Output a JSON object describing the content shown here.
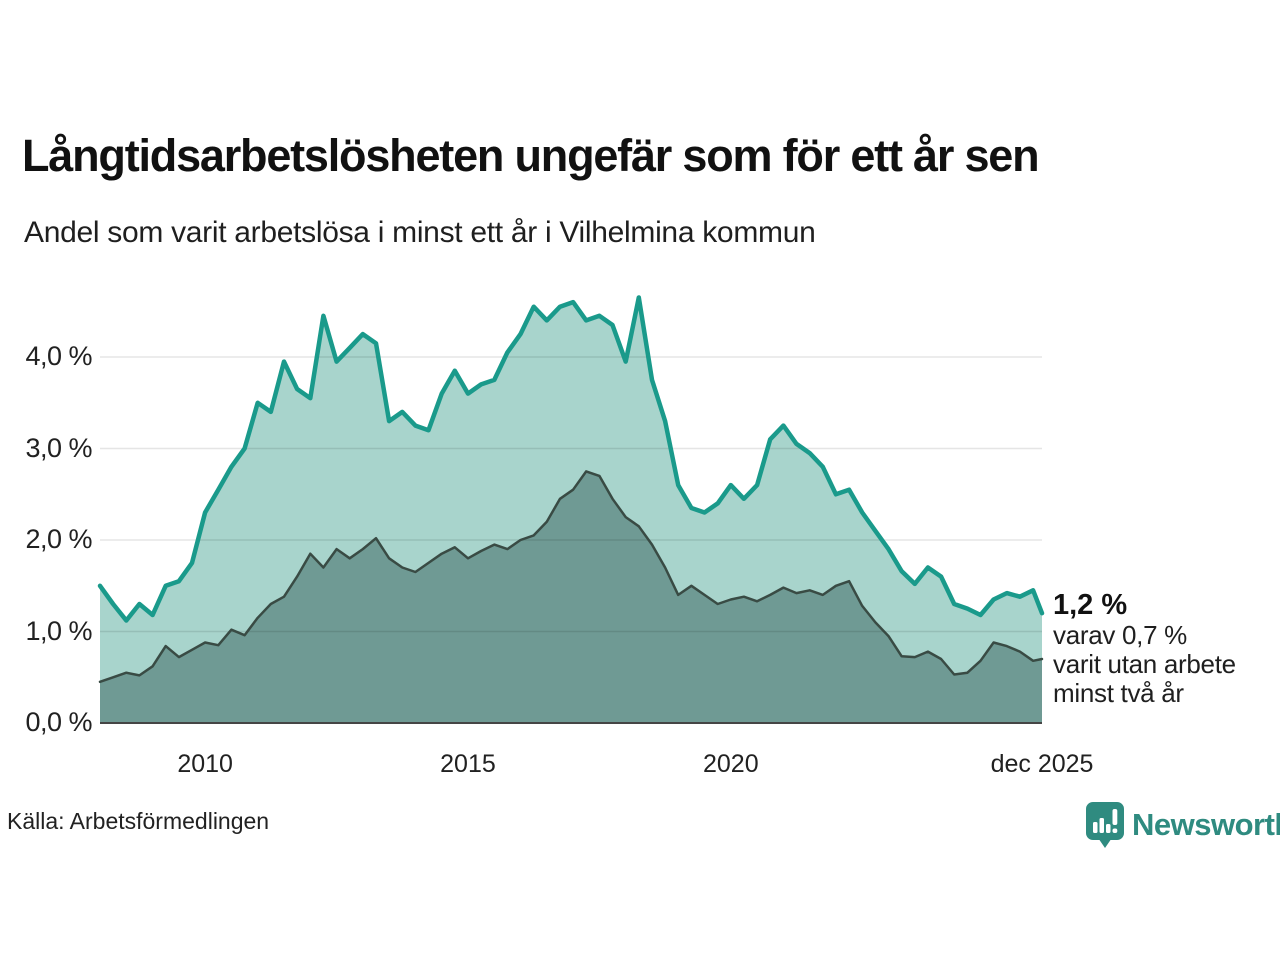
{
  "header": {
    "title": "Långtidsarbetslösheten ungefär som för ett år sen",
    "subtitle": "Andel som varit arbetslösa i minst ett år i Vilhelmina kommun"
  },
  "chart_data": {
    "type": "area",
    "title": "Långtidsarbetslösheten ungefär som för ett år sen",
    "subtitle": "Andel som varit arbetslösa i minst ett år i Vilhelmina kommun",
    "unit": "%",
    "grid": "horizontal",
    "xlim": [
      2008,
      2025.92
    ],
    "ylim": [
      0,
      4.8
    ],
    "x": [
      2008,
      2008.25,
      2008.5,
      2008.75,
      2009,
      2009.25,
      2009.5,
      2009.75,
      2010,
      2010.25,
      2010.5,
      2010.75,
      2011,
      2011.25,
      2011.5,
      2011.75,
      2012,
      2012.25,
      2012.5,
      2012.75,
      2013,
      2013.25,
      2013.5,
      2013.75,
      2014,
      2014.25,
      2014.5,
      2014.75,
      2015,
      2015.25,
      2015.5,
      2015.75,
      2016,
      2016.25,
      2016.5,
      2016.75,
      2017,
      2017.25,
      2017.5,
      2017.75,
      2018,
      2018.25,
      2018.5,
      2018.75,
      2019,
      2019.25,
      2019.5,
      2019.75,
      2020,
      2020.25,
      2020.5,
      2020.75,
      2021,
      2021.25,
      2021.5,
      2021.75,
      2022,
      2022.25,
      2022.5,
      2022.75,
      2023,
      2023.25,
      2023.5,
      2023.75,
      2024,
      2024.25,
      2024.5,
      2024.75,
      2025,
      2025.25,
      2025.5,
      2025.75,
      2025.92
    ],
    "series": [
      {
        "key": "minst-ett-ar",
        "name": "Andel arbetslösa minst ett år",
        "line_color": "#1a9a8b",
        "fill_color": "#a8d4cc",
        "line_width": 4.5,
        "last_value_label": "1,2 %",
        "values": [
          1.5,
          1.3,
          1.12,
          1.3,
          1.18,
          1.5,
          1.55,
          1.75,
          2.3,
          2.55,
          2.8,
          3.0,
          3.5,
          3.4,
          3.95,
          3.65,
          3.55,
          4.45,
          3.95,
          4.1,
          4.25,
          4.15,
          3.3,
          3.4,
          3.25,
          3.2,
          3.6,
          3.85,
          3.6,
          3.7,
          3.75,
          4.05,
          4.25,
          4.55,
          4.4,
          4.55,
          4.6,
          4.4,
          4.45,
          4.35,
          3.95,
          4.65,
          3.75,
          3.3,
          2.6,
          2.35,
          2.3,
          2.4,
          2.6,
          2.45,
          2.6,
          3.1,
          3.25,
          3.05,
          2.95,
          2.8,
          2.5,
          2.55,
          2.3,
          2.1,
          1.9,
          1.66,
          1.52,
          1.7,
          1.6,
          1.3,
          1.25,
          1.18,
          1.35,
          1.42,
          1.38,
          1.45,
          1.2
        ]
      },
      {
        "key": "minst-tva-ar",
        "name": "Andel utan arbete minst två år",
        "line_color": "#394b44",
        "fill_color": "#6f9a94",
        "line_width": 2.5,
        "last_value_label": "0,7 %",
        "values": [
          0.45,
          0.5,
          0.55,
          0.52,
          0.62,
          0.84,
          0.72,
          0.8,
          0.88,
          0.85,
          1.02,
          0.96,
          1.15,
          1.3,
          1.38,
          1.6,
          1.85,
          1.7,
          1.9,
          1.8,
          1.9,
          2.02,
          1.8,
          1.7,
          1.65,
          1.75,
          1.85,
          1.92,
          1.8,
          1.88,
          1.95,
          1.9,
          2.0,
          2.05,
          2.2,
          2.45,
          2.55,
          2.75,
          2.7,
          2.45,
          2.25,
          2.15,
          1.95,
          1.7,
          1.4,
          1.5,
          1.4,
          1.3,
          1.35,
          1.38,
          1.33,
          1.4,
          1.48,
          1.42,
          1.45,
          1.4,
          1.5,
          1.55,
          1.28,
          1.1,
          0.95,
          0.73,
          0.72,
          0.78,
          0.7,
          0.53,
          0.55,
          0.68,
          0.88,
          0.84,
          0.78,
          0.68,
          0.7
        ]
      }
    ],
    "yticks": [
      {
        "value": 0,
        "label": "0,0 %"
      },
      {
        "value": 1,
        "label": "1,0 %"
      },
      {
        "value": 2,
        "label": "2,0 %"
      },
      {
        "value": 3,
        "label": "3,0 %"
      },
      {
        "value": 4,
        "label": "4,0 %"
      }
    ],
    "xticks": [
      {
        "value": 2010,
        "label": "2010"
      },
      {
        "value": 2015,
        "label": "2015"
      },
      {
        "value": 2020,
        "label": "2020"
      },
      {
        "value": 2025.92,
        "label": "dec 2025"
      }
    ]
  },
  "annotation": {
    "value": "1,2 %",
    "line1": "varav 0,7 %",
    "line2": "varit utan arbete",
    "line3": "minst två år"
  },
  "footer": {
    "source": "Källa: Arbetsförmedlingen",
    "brand": "Newsworthy"
  },
  "colors": {
    "accent_teal": "#1a9a8b",
    "fill_light": "#a8d4cc",
    "fill_dark": "#6f9a94",
    "line_dark": "#394b44",
    "brand_teal": "#2f8b80",
    "gridline": "rgba(0,0,0,0.10)",
    "axis_line": "#454545",
    "text": "#1a1a1a"
  }
}
